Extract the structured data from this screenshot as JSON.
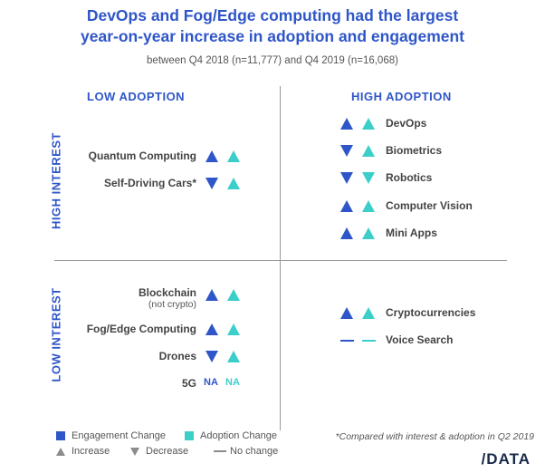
{
  "title_line1": "DevOps and Fog/Edge computing had the largest",
  "title_line2": "year-on-year increase in adoption and engagement",
  "subtitle": "between Q4 2018 (n=11,777) and Q4 2019 (n=16,068)",
  "colors": {
    "engagement": "#2f56c8",
    "adoption": "#3ccfca",
    "axis": "#9a9a9a",
    "neutral": "#8c8c8c"
  },
  "chart_data": {
    "type": "table",
    "title": "DevOps and Fog/Edge computing had the largest year-on-year increase in adoption and engagement",
    "quadrant_labels": {
      "low_adoption": "LOW ADOPTION",
      "high_adoption": "HIGH ADOPTION",
      "high_interest": "HIGH INTEREST",
      "low_interest": "LOW INTEREST"
    },
    "quadrants": {
      "high_interest_low_adoption": [
        {
          "label": "Quantum Computing",
          "engagement": "increase",
          "adoption": "increase"
        },
        {
          "label": "Self-Driving Cars*",
          "engagement": "decrease",
          "adoption": "increase"
        }
      ],
      "high_interest_high_adoption": [
        {
          "label": "DevOps",
          "engagement": "increase",
          "adoption": "increase"
        },
        {
          "label": "Biometrics",
          "engagement": "decrease",
          "adoption": "increase"
        },
        {
          "label": "Robotics",
          "engagement": "decrease",
          "adoption": "decrease"
        },
        {
          "label": "Computer Vision",
          "engagement": "increase",
          "adoption": "increase"
        },
        {
          "label": "Mini Apps",
          "engagement": "increase",
          "adoption": "increase"
        }
      ],
      "low_interest_low_adoption": [
        {
          "label": "Blockchain",
          "sublabel": "(not crypto)",
          "engagement": "increase",
          "adoption": "increase"
        },
        {
          "label": "Fog/Edge Computing",
          "engagement": "increase",
          "adoption": "increase"
        },
        {
          "label": "Drones",
          "engagement": "decrease",
          "adoption": "increase"
        },
        {
          "label": "5G",
          "engagement": "NA",
          "adoption": "NA"
        }
      ],
      "low_interest_high_adoption": [
        {
          "label": "Cryptocurrencies",
          "engagement": "increase",
          "adoption": "increase"
        },
        {
          "label": "Voice Search",
          "engagement": "no change",
          "adoption": "no change"
        }
      ]
    }
  },
  "legend": {
    "engagement": "Engagement Change",
    "adoption": "Adoption Change",
    "increase": "Increase",
    "decrease": "Decrease",
    "nochange": "No change"
  },
  "footnote": "*Compared with interest & adoption in Q2 2019",
  "logo": "/DATA"
}
